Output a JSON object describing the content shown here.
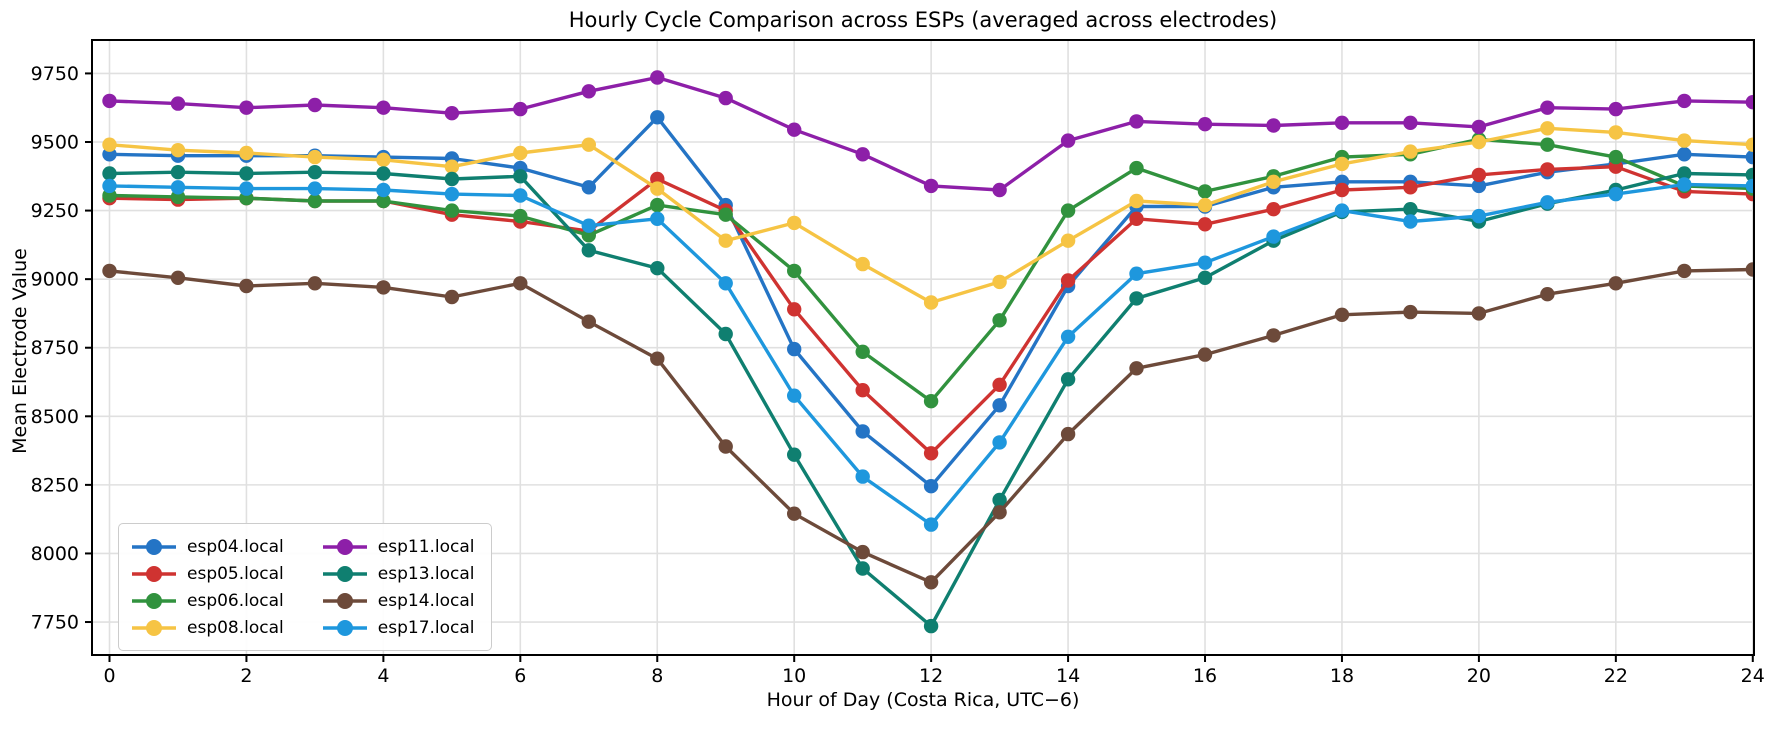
{
  "figure": {
    "background": "#ffffff",
    "grid_color": "#e0e0e0",
    "spine_color": "#000000",
    "text_color": "#000000"
  },
  "chart_data": {
    "type": "line",
    "title": "Hourly Cycle Comparison across ESPs (averaged across electrodes)",
    "xlabel": "Hour of Day (Costa Rica, UTC−6)",
    "ylabel": "Mean Electrode Value",
    "x": [
      0,
      1,
      2,
      3,
      4,
      5,
      6,
      7,
      8,
      9,
      10,
      11,
      12,
      13,
      14,
      15,
      16,
      17,
      18,
      19,
      20,
      21,
      22,
      23,
      24
    ],
    "xticks": [
      0,
      2,
      4,
      6,
      8,
      10,
      12,
      14,
      16,
      18,
      20,
      22,
      24
    ],
    "yticks": [
      7750,
      8000,
      8250,
      8500,
      8750,
      9000,
      9250,
      9500,
      9750
    ],
    "xlim": [
      -0.26,
      24.03
    ],
    "ylim": [
      7630,
      9870
    ],
    "grid": true,
    "legend": {
      "position": "lower left",
      "columns": 2,
      "order": [
        "esp04.local",
        "esp05.local",
        "esp06.local",
        "esp08.local",
        "esp11.local",
        "esp13.local",
        "esp14.local",
        "esp17.local"
      ]
    },
    "series": [
      {
        "name": "esp04.local",
        "color": "#2474c5",
        "values": [
          9455,
          9450,
          9450,
          9450,
          9445,
          9440,
          9405,
          9335,
          9590,
          9270,
          8745,
          8445,
          8245,
          8540,
          8975,
          9265,
          9265,
          9335,
          9355,
          9355,
          9340,
          9390,
          9420,
          9455,
          9445
        ]
      },
      {
        "name": "esp05.local",
        "color": "#cf3331",
        "values": [
          9295,
          9290,
          9295,
          9285,
          9285,
          9235,
          9210,
          9175,
          9365,
          9250,
          8890,
          8595,
          8365,
          8615,
          8995,
          9220,
          9200,
          9255,
          9325,
          9335,
          9380,
          9400,
          9410,
          9320,
          9310
        ]
      },
      {
        "name": "esp06.local",
        "color": "#31923e",
        "values": [
          9305,
          9300,
          9295,
          9285,
          9285,
          9250,
          9230,
          9160,
          9270,
          9235,
          9030,
          8735,
          8555,
          8850,
          9250,
          9405,
          9320,
          9375,
          9445,
          9455,
          9510,
          9490,
          9445,
          9340,
          9330
        ]
      },
      {
        "name": "esp08.local",
        "color": "#f6c444",
        "values": [
          9490,
          9470,
          9460,
          9445,
          9435,
          9410,
          9460,
          9490,
          9330,
          9140,
          9205,
          9055,
          8915,
          8990,
          9140,
          9285,
          9270,
          9355,
          9420,
          9465,
          9500,
          9550,
          9535,
          9505,
          9490
        ]
      },
      {
        "name": "esp11.local",
        "color": "#8d1fa8",
        "values": [
          9650,
          9640,
          9625,
          9635,
          9625,
          9605,
          9620,
          9685,
          9735,
          9660,
          9545,
          9455,
          9340,
          9325,
          9505,
          9575,
          9565,
          9560,
          9570,
          9570,
          9555,
          9625,
          9620,
          9650,
          9645
        ]
      },
      {
        "name": "esp13.local",
        "color": "#0f7f70",
        "values": [
          9385,
          9390,
          9385,
          9390,
          9385,
          9365,
          9375,
          9105,
          9040,
          8800,
          8360,
          7945,
          7735,
          8195,
          8635,
          8930,
          9005,
          9140,
          9245,
          9255,
          9210,
          9275,
          9325,
          9385,
          9380
        ]
      },
      {
        "name": "esp14.local",
        "color": "#6d4a3a",
        "values": [
          9030,
          9005,
          8975,
          8985,
          8970,
          8935,
          8985,
          8845,
          8710,
          8390,
          8145,
          8005,
          7895,
          8150,
          8435,
          8675,
          8725,
          8795,
          8870,
          8880,
          8875,
          8945,
          8985,
          9030,
          9035
        ]
      },
      {
        "name": "esp17.local",
        "color": "#1e97dd",
        "values": [
          9340,
          9335,
          9330,
          9330,
          9325,
          9310,
          9305,
          9195,
          9220,
          8985,
          8575,
          8280,
          8105,
          8405,
          8790,
          9020,
          9060,
          9155,
          9250,
          9210,
          9230,
          9280,
          9310,
          9345,
          9340
        ]
      }
    ]
  }
}
